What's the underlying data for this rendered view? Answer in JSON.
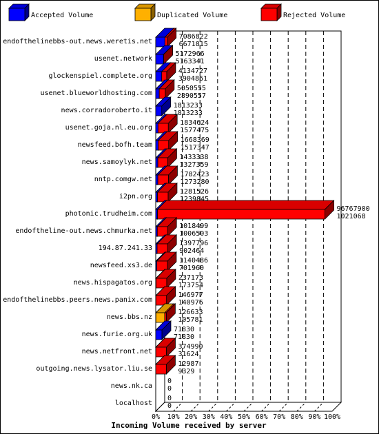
{
  "chart_data": {
    "type": "bar",
    "orientation": "horizontal",
    "xlabel": "Incoming Volume received by server",
    "xlim": [
      0,
      100
    ],
    "x_tick_labels": [
      "0%",
      "10%",
      "20%",
      "30%",
      "40%",
      "50%",
      "60%",
      "70%",
      "80%",
      "90%",
      "100%"
    ],
    "legend": {
      "placement": "top",
      "entries": [
        {
          "label": "Accepted Volume",
          "color": "#0000ff"
        },
        {
          "label": "Duplicated Volume",
          "color": "#ffb000"
        },
        {
          "label": "Rejected Volume",
          "color": "#ff0000"
        }
      ]
    },
    "categories": [
      "endofthelinebbs-out.news.weretis.net",
      "usenet.network",
      "glockenspiel.complete.org",
      "usenet.blueworldhosting.com",
      "news.corradoroberto.it",
      "usenet.goja.nl.eu.org",
      "newsfeed.bofh.team",
      "news.samoylyk.net",
      "nntp.comgw.net",
      "i2pn.org",
      "photonic.trudheim.com",
      "endoftheline-out.news.chmurka.net",
      "194.87.241.33",
      "newsfeed.xs3.de",
      "news.hispagatos.org",
      "endofthelinebbs.peers.news.panix.com",
      "news.bbs.nz",
      "news.furie.org.uk",
      "news.netfront.net",
      "outgoing.news.lysator.liu.se",
      "news.nk.ca",
      "localhost"
    ],
    "volume_labels": [
      [
        "7086822",
        "6671815"
      ],
      [
        "5172966",
        "5163341"
      ],
      [
        "4134727",
        "3904861"
      ],
      [
        "5050555",
        "2890557"
      ],
      [
        "1813233",
        "1813233"
      ],
      [
        "1834624",
        "1577475"
      ],
      [
        "1668369",
        "1517347"
      ],
      [
        "1433338",
        "1327359"
      ],
      [
        "1782423",
        "1273280"
      ],
      [
        "1281526",
        "1239845"
      ],
      [
        "96767900",
        "1021068"
      ],
      [
        "1018499",
        "1006503"
      ],
      [
        "1397796",
        "902464"
      ],
      [
        "1140486",
        "701960"
      ],
      [
        "237173",
        "173754"
      ],
      [
        "146977",
        "140976"
      ],
      [
        "126633",
        "105781"
      ],
      [
        "71830",
        "71830"
      ],
      [
        "374990",
        "31624"
      ],
      [
        "12987",
        "9329"
      ],
      [
        "0",
        "0"
      ],
      [
        "0",
        "0"
      ]
    ],
    "series": [
      {
        "name": "Accepted Volume",
        "values": [
          5.2,
          4.4,
          3.4,
          2.0,
          3.4,
          1.3,
          1.4,
          1.2,
          1.2,
          1.0,
          1.0,
          0.9,
          0.8,
          0.6,
          0.2,
          0.1,
          0.1,
          3.5,
          0.04,
          0.01,
          0,
          0
        ]
      },
      {
        "name": "Duplicated Volume",
        "values": [
          0,
          0,
          0,
          0,
          0,
          0,
          0,
          0,
          0,
          0,
          0,
          0,
          0,
          0,
          0,
          0,
          5.0,
          0,
          0,
          0,
          0,
          0
        ]
      },
      {
        "name": "Rejected Volume",
        "values": [
          1.3,
          0.1,
          2.8,
          3.4,
          0,
          5.8,
          5.9,
          5.6,
          6.0,
          6.0,
          94.9,
          5.8,
          5.9,
          6.0,
          6.0,
          6.0,
          0.9,
          0,
          6.0,
          6.0,
          0,
          0
        ]
      }
    ]
  }
}
